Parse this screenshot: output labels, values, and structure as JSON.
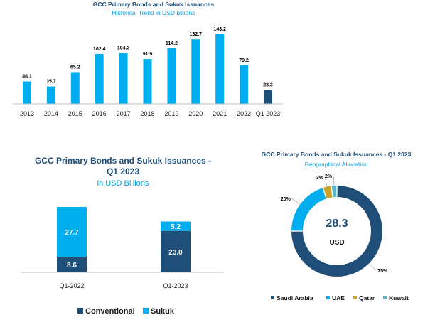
{
  "colors": {
    "dark_blue": "#1F4E79",
    "light_blue": "#00AEEF",
    "gold": "#C9A227",
    "teal": "#5BB5C5"
  },
  "chart_data": [
    {
      "type": "bar",
      "title": "GCC Primary Bonds and Sukuk Issuances",
      "subtitle": "Historical Trend in USD billions",
      "categories": [
        "2013",
        "2014",
        "2015",
        "2016",
        "2017",
        "2018",
        "2019",
        "2020",
        "2021",
        "2022",
        "Q1 2023"
      ],
      "values": [
        46.1,
        35.7,
        65.2,
        102.4,
        104.3,
        91.9,
        114.2,
        132.7,
        143.2,
        79.2,
        28.3
      ],
      "data_labels": [
        "46.1",
        "35.7",
        "65.2",
        "102.4",
        "104.3",
        "91.9",
        "114.2",
        "132.7",
        "143.2",
        "79.2",
        "28.3"
      ],
      "highlight_category": "Q1 2023",
      "ylim": [
        0,
        150
      ]
    },
    {
      "type": "bar",
      "stacked": true,
      "title_lines": [
        "GCC Primary Bonds and Sukuk Issuances -",
        "Q1 2023"
      ],
      "subtitle": "in USD Billions",
      "categories": [
        "Q1-2022",
        "Q1-2023"
      ],
      "series": [
        {
          "name": "Conventional",
          "values": [
            8.6,
            23.0
          ],
          "labels": [
            "8.6",
            "23.0"
          ]
        },
        {
          "name": "Sukuk",
          "values": [
            27.7,
            5.2
          ],
          "labels": [
            "27.7",
            "5.2"
          ]
        }
      ],
      "legend": "bottom",
      "ylim": [
        0,
        36.3
      ]
    },
    {
      "type": "pie",
      "donut": true,
      "title": "GCC Primary Bonds and Sukuk Issuances - Q1 2023",
      "subtitle": "Geographical Allocation",
      "center_value": "28.3",
      "center_unit": "USD",
      "slices": [
        {
          "name": "Saudi Arabia",
          "value": 75,
          "label": "75%"
        },
        {
          "name": "UAE",
          "value": 20,
          "label": "20%"
        },
        {
          "name": "Qatar",
          "value": 3,
          "label": "3%"
        },
        {
          "name": "Kuwait",
          "value": 2,
          "label": "2%"
        }
      ],
      "legend": "bottom"
    }
  ]
}
